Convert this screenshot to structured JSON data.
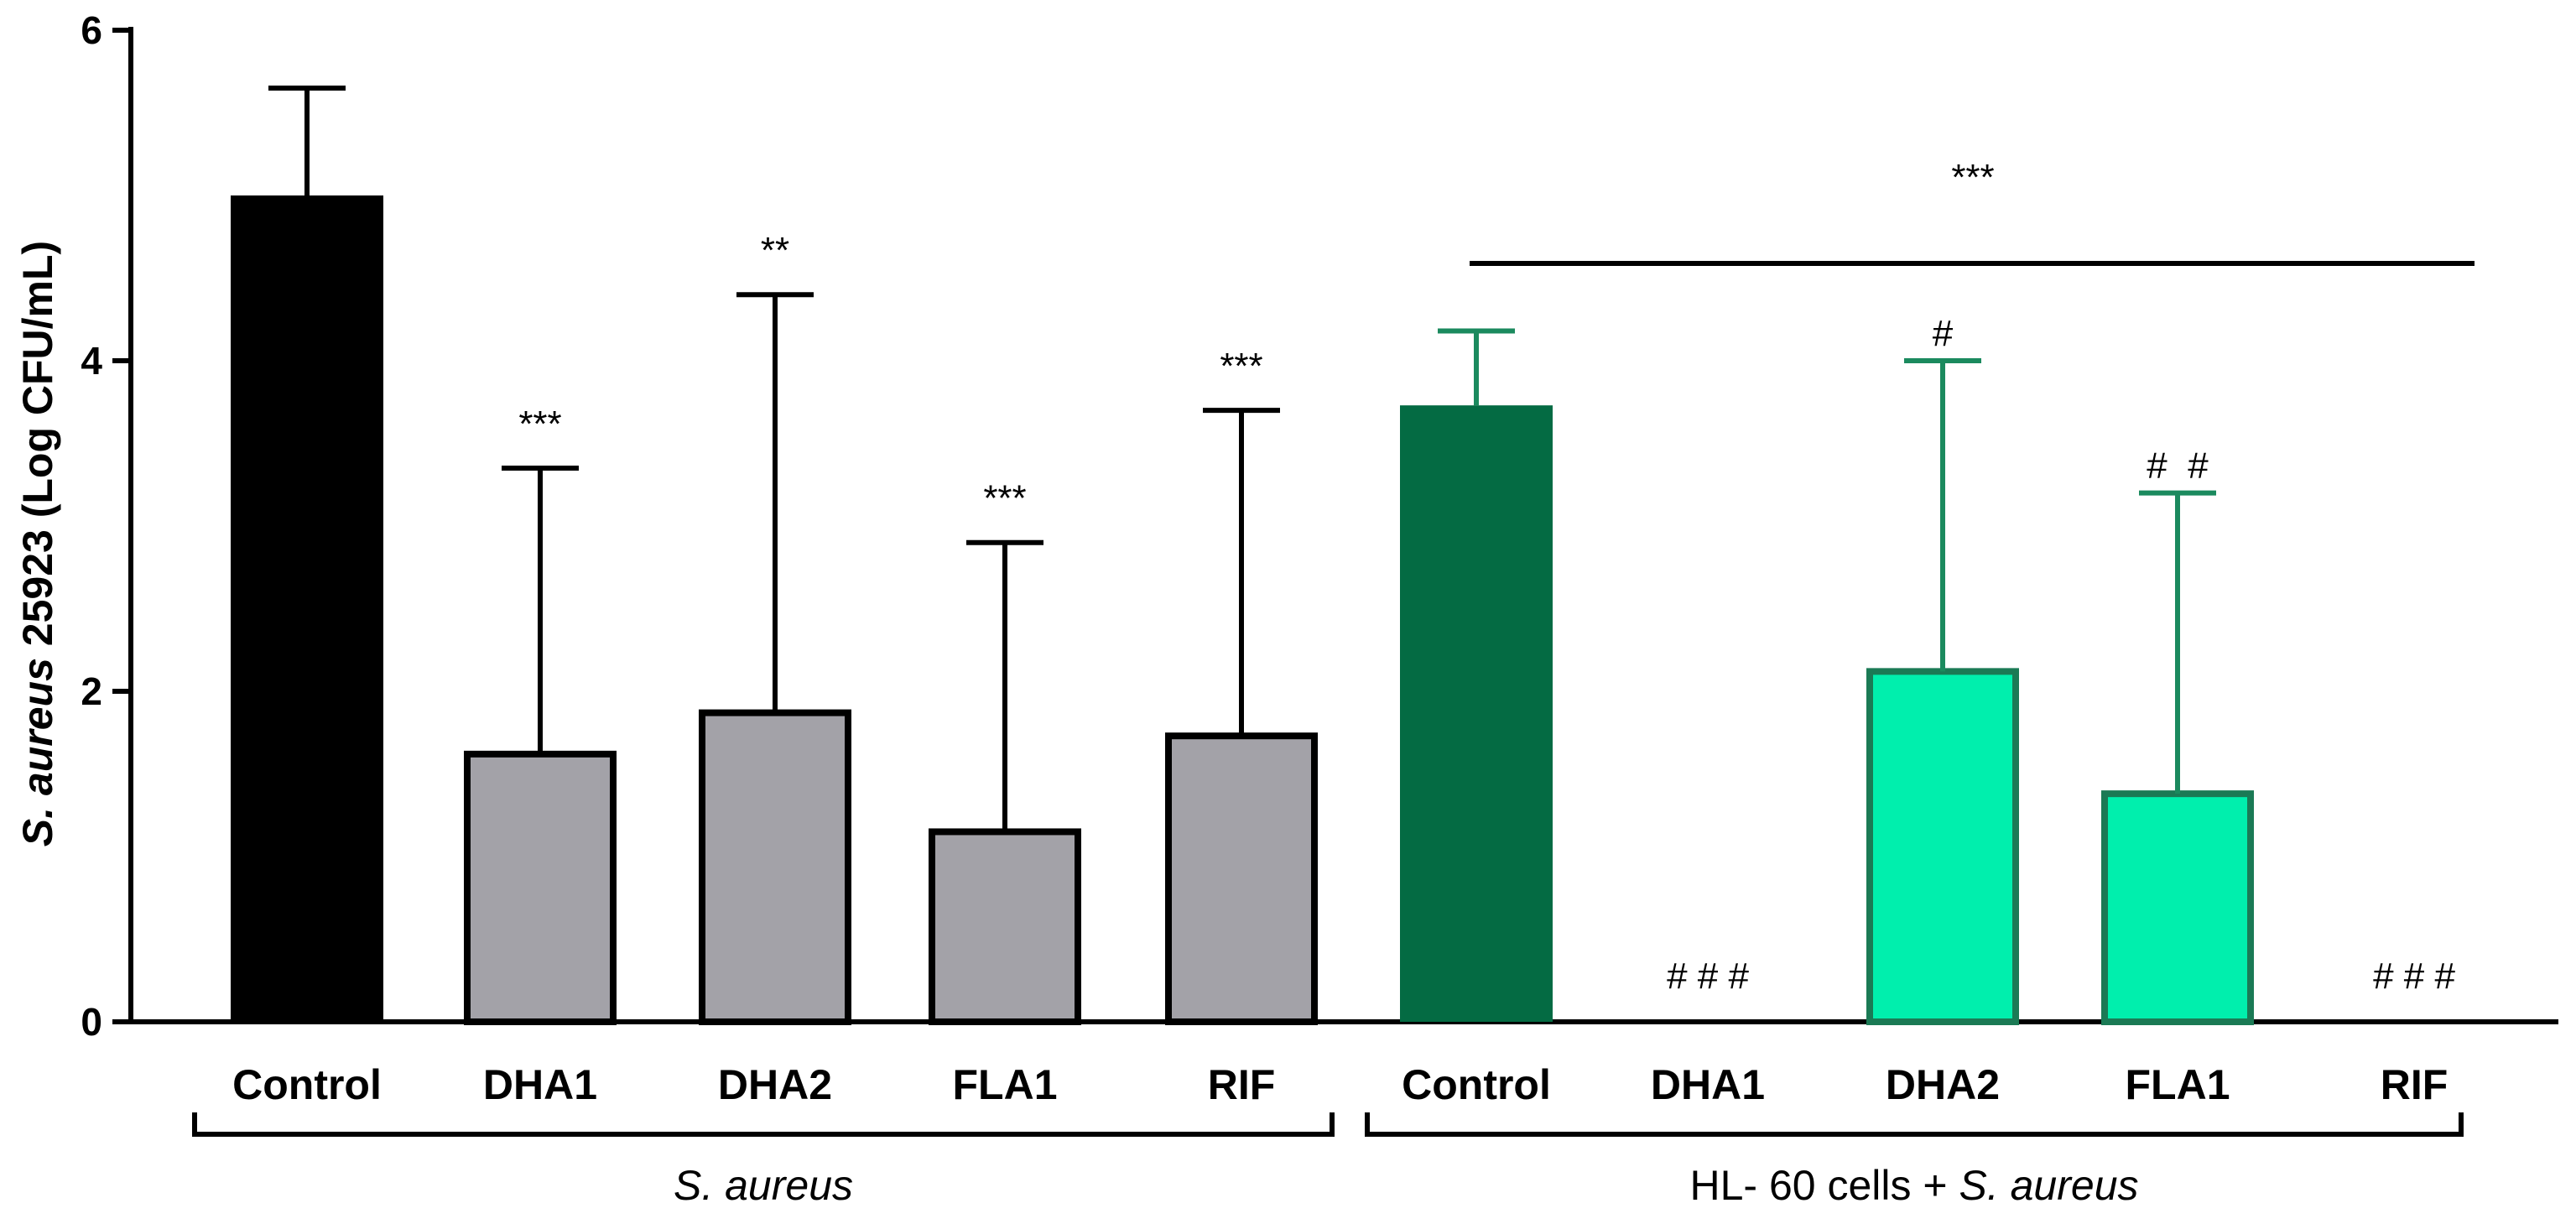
{
  "chart_data": {
    "type": "bar",
    "ylabel": {
      "italic": "S. aureus",
      "rest": " 25923 (Log CFU/mL)"
    },
    "ylim": [
      0,
      6
    ],
    "yticks": [
      "0",
      "2",
      "4",
      "6"
    ],
    "ytick_values": [
      0,
      2,
      4,
      6
    ],
    "colors": {
      "black": "#000000",
      "gray": "#a3a2a8",
      "dark_green": "#046b43",
      "light_green": "#00efad",
      "green_outline": "#1b7a55",
      "green_errbar": "#1b8a5e",
      "axis": "#000000"
    },
    "groups": [
      {
        "label_italic": "S. aureus",
        "label_prefix": ""
      },
      {
        "label_prefix": "HL- 60 cells + ",
        "label_italic": "S. aureus"
      }
    ],
    "categories": [
      "Control",
      "DHA1",
      "DHA2",
      "FLA1",
      "RIF",
      "Control",
      "DHA1",
      "DHA2",
      "FLA1",
      "RIF"
    ],
    "series": [
      {
        "name": "Log CFU/mL",
        "values": [
          5.0,
          1.62,
          1.87,
          1.15,
          1.73,
          3.73,
          0,
          2.12,
          1.38,
          0
        ],
        "errors": [
          0.65,
          1.73,
          2.53,
          1.75,
          1.97,
          0.45,
          0,
          1.88,
          1.82,
          0
        ],
        "styles": [
          "black",
          "gray",
          "gray",
          "gray",
          "gray",
          "dark_green",
          "none",
          "light_green",
          "light_green",
          "none"
        ]
      }
    ],
    "annotations": [
      "",
      "***",
      "**",
      "***",
      "***",
      "",
      "# # #",
      "#",
      "#  #",
      "# # #"
    ],
    "bracket_annotation": "***"
  }
}
